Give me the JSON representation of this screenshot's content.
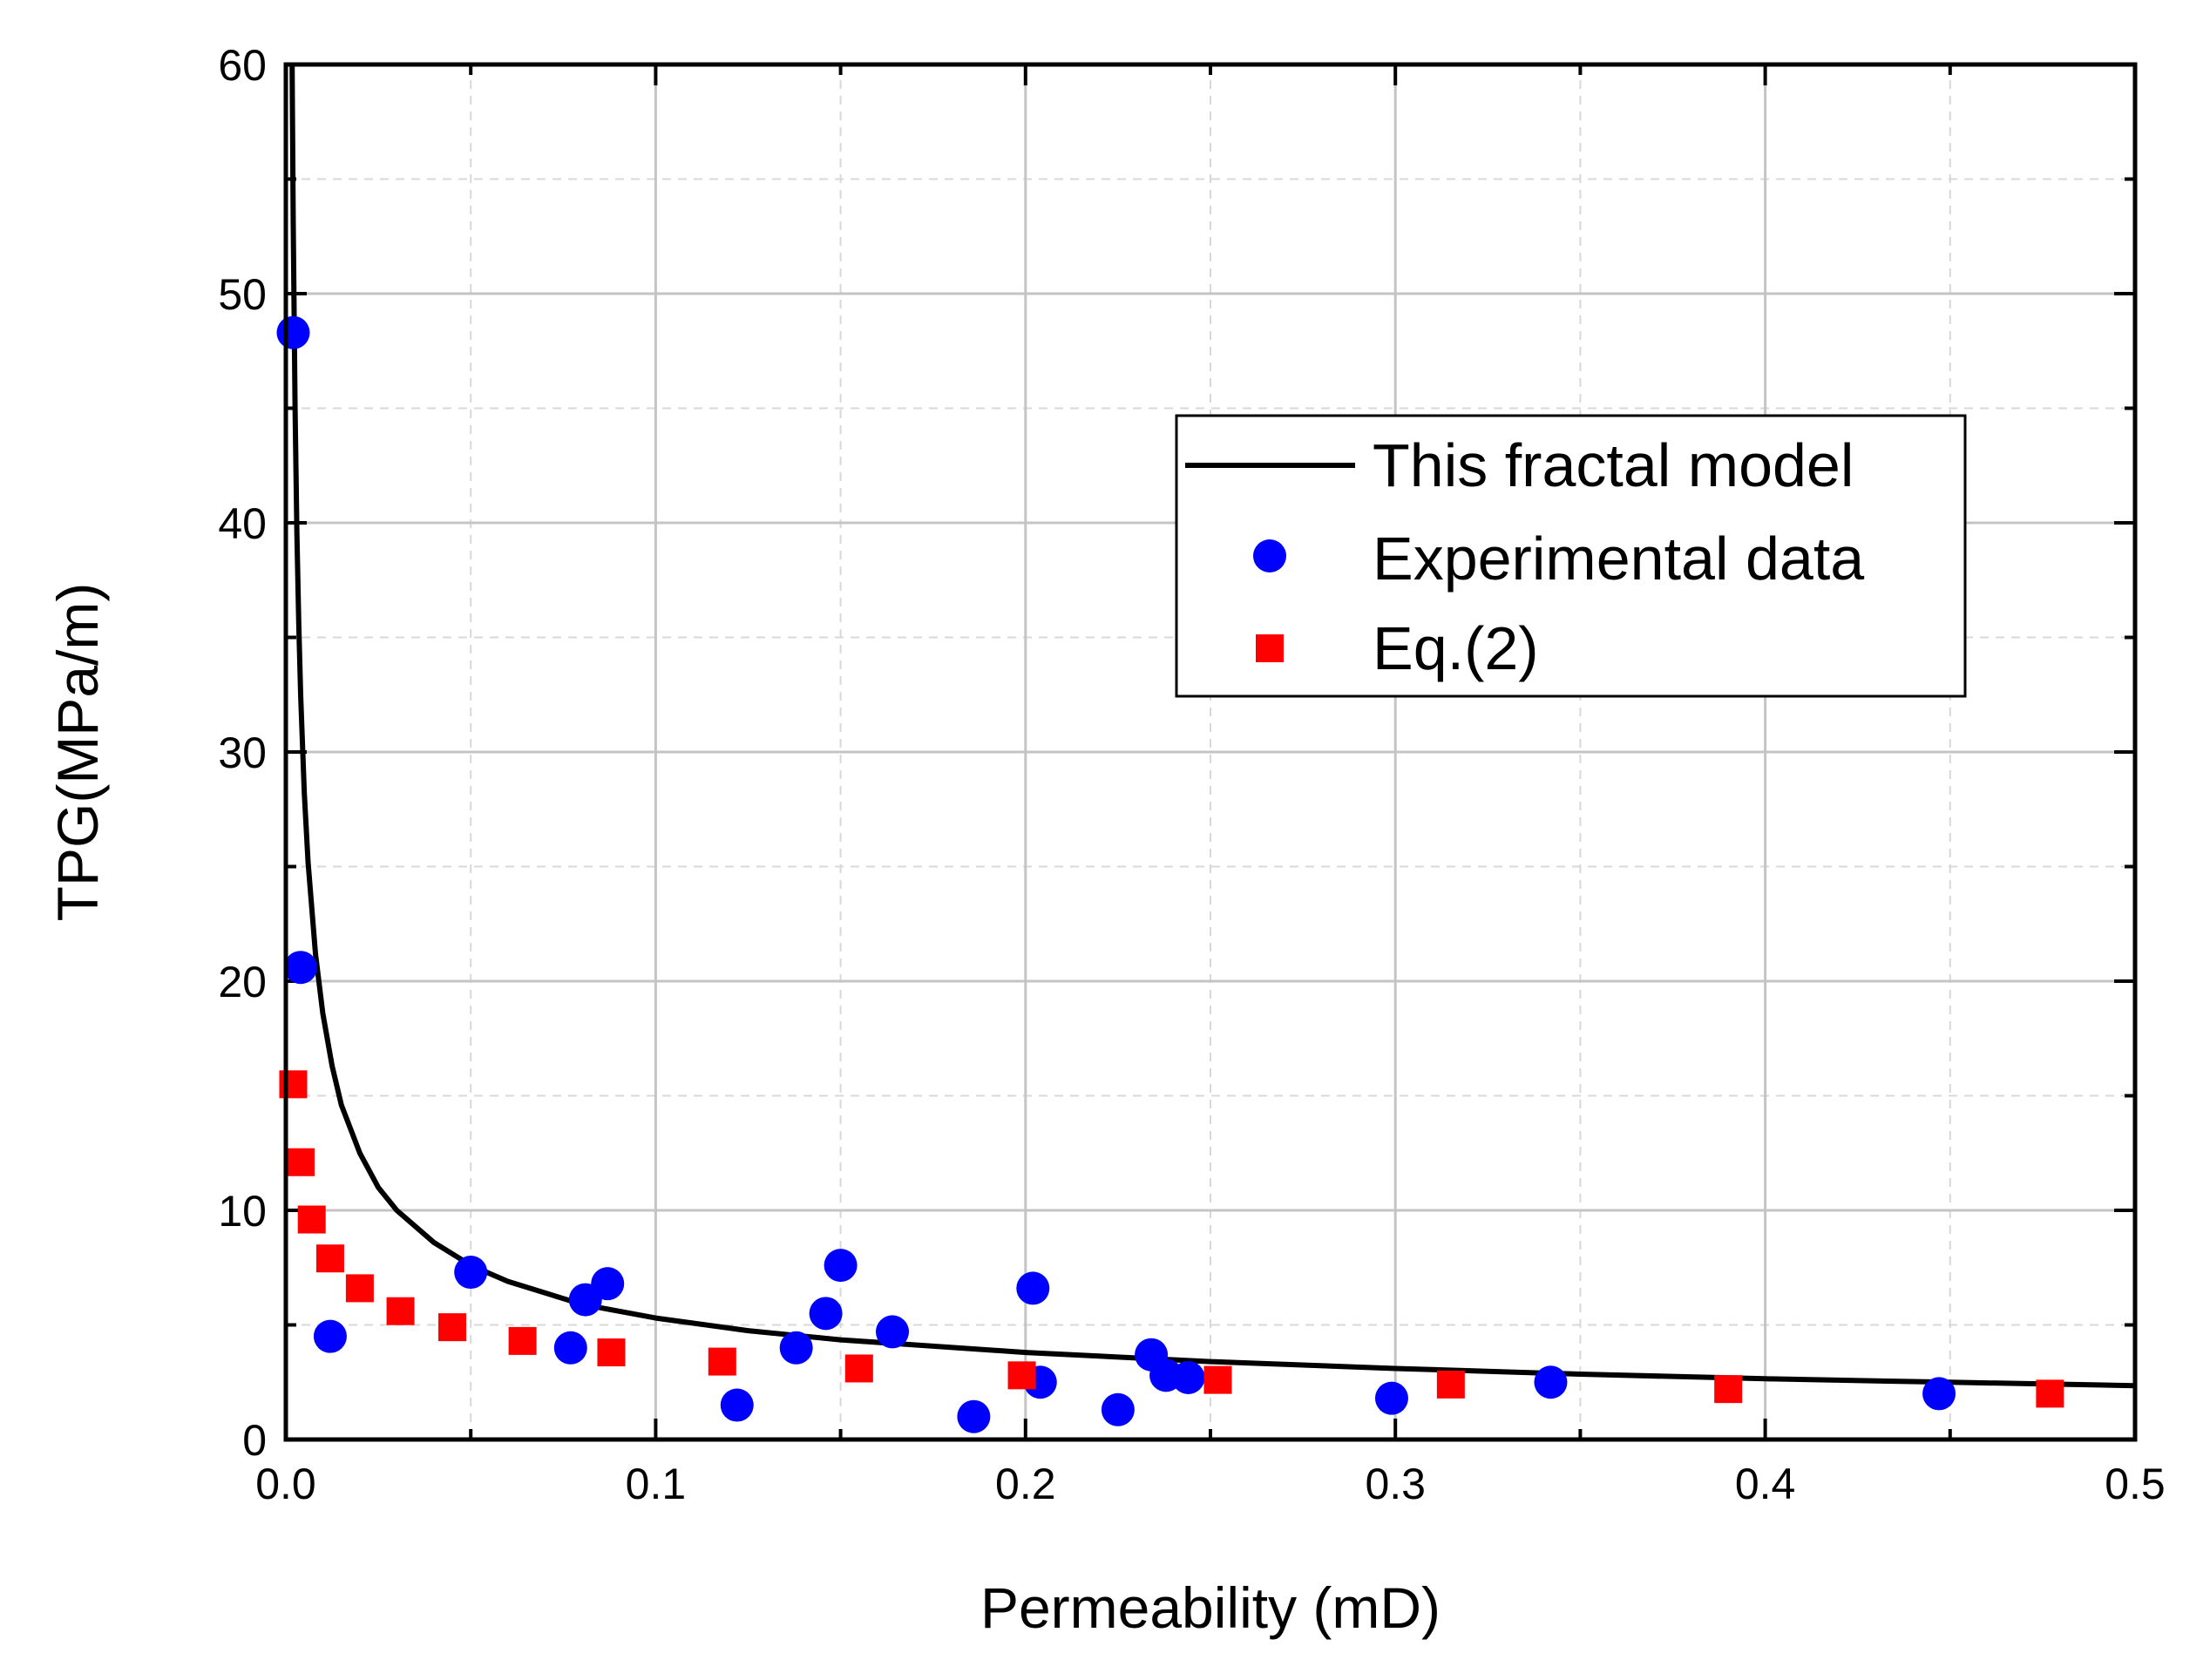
{
  "chart_data": {
    "type": "scatter",
    "xlabel": "Permeability (mD)",
    "ylabel": "TPG(MPa/m)",
    "xlim": [
      0.0,
      0.5
    ],
    "ylim": [
      0,
      60
    ],
    "xticks": [
      "0.0",
      "0.1",
      "0.2",
      "0.3",
      "0.4",
      "0.5"
    ],
    "yticks": [
      "0",
      "10",
      "20",
      "30",
      "40",
      "50",
      "60"
    ],
    "grid": true,
    "legend_position": "upper-right",
    "series": [
      {
        "name": "This fractal model",
        "kind": "line",
        "color": "#000000",
        "x": [
          0.0017,
          0.002,
          0.0025,
          0.003,
          0.0035,
          0.004,
          0.005,
          0.006,
          0.008,
          0.01,
          0.0125,
          0.015,
          0.02,
          0.025,
          0.03,
          0.04,
          0.05,
          0.06,
          0.08,
          0.1,
          0.125,
          0.15,
          0.2,
          0.25,
          0.3,
          0.35,
          0.4,
          0.45,
          0.5
        ],
        "y": [
          60,
          53,
          45,
          39.5,
          35.5,
          32.5,
          28.2,
          25.2,
          21.2,
          18.6,
          16.3,
          14.6,
          12.5,
          11.0,
          10.0,
          8.6,
          7.6,
          6.9,
          5.9,
          5.3,
          4.75,
          4.35,
          3.8,
          3.4,
          3.1,
          2.85,
          2.65,
          2.5,
          2.35
        ]
      },
      {
        "name": "Experimental data",
        "kind": "scatter",
        "marker": "circle",
        "color": "#0000ff",
        "x": [
          0.002,
          0.004,
          0.012,
          0.05,
          0.077,
          0.081,
          0.087,
          0.122,
          0.138,
          0.146,
          0.15,
          0.164,
          0.186,
          0.202,
          0.204,
          0.225,
          0.234,
          0.238,
          0.244,
          0.299,
          0.342,
          0.447
        ],
        "y": [
          48.3,
          20.6,
          4.5,
          7.3,
          4.0,
          6.1,
          6.8,
          1.5,
          4.0,
          5.5,
          7.6,
          4.7,
          1.0,
          6.6,
          2.5,
          1.3,
          3.7,
          2.8,
          2.7,
          1.8,
          2.5,
          2.0
        ]
      },
      {
        "name": "Eq.(2)",
        "kind": "scatter",
        "marker": "square",
        "color": "#ff0000",
        "x": [
          0.002,
          0.004,
          0.007,
          0.012,
          0.02,
          0.031,
          0.045,
          0.064,
          0.088,
          0.118,
          0.155,
          0.199,
          0.252,
          0.315,
          0.39,
          0.477
        ],
        "y": [
          15.5,
          12.1,
          9.6,
          7.9,
          6.6,
          5.6,
          4.9,
          4.3,
          3.8,
          3.4,
          3.1,
          2.8,
          2.6,
          2.4,
          2.2,
          2.0
        ]
      }
    ]
  }
}
